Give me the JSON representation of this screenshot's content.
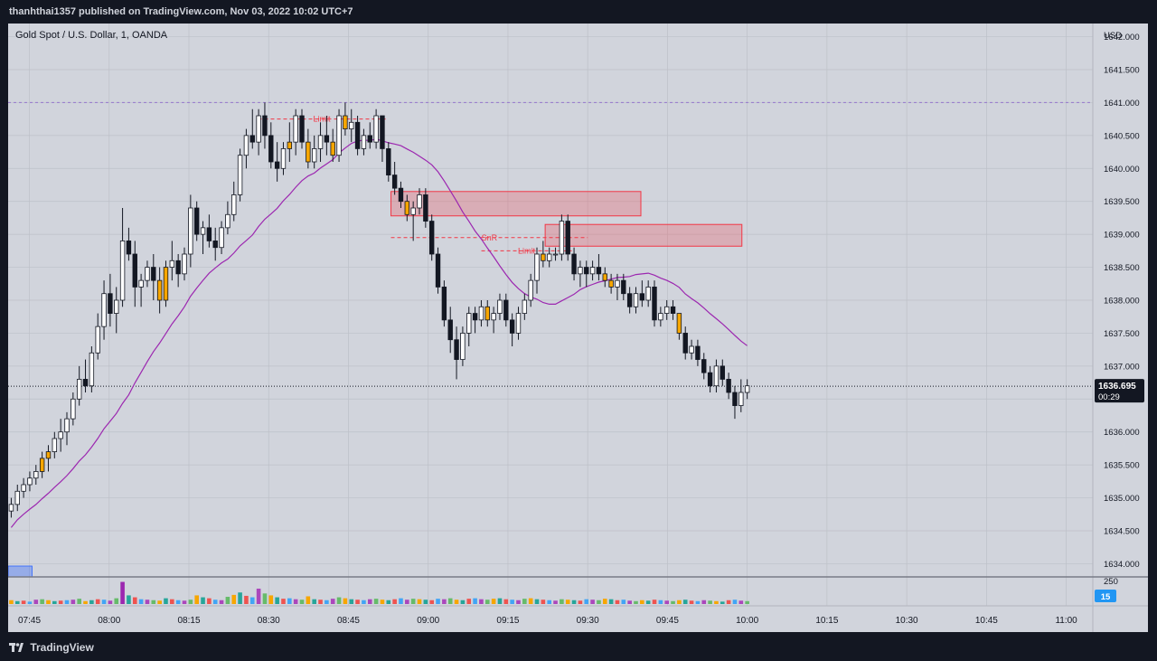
{
  "header": {
    "publish_line": "thanhthai1357 published on TradingView.com, Nov 03, 2022 10:02 UTC+7"
  },
  "footer": {
    "brand": "TradingView"
  },
  "chart_data": {
    "type": "candlestick",
    "symbol_title": "Gold Spot / U.S. Dollar, 1, OANDA",
    "currency": "USD",
    "y_ticks": [
      "1642.000",
      "1641.500",
      "1641.000",
      "1640.500",
      "1640.000",
      "1639.500",
      "1639.000",
      "1638.500",
      "1638.000",
      "1637.500",
      "1637.000",
      "1636.500",
      "1636.000",
      "1635.500",
      "1635.000",
      "1634.500",
      "1634.000"
    ],
    "ylim": [
      1633.8,
      1642.2
    ],
    "x_ticks": [
      "07:45",
      "08:00",
      "08:15",
      "08:30",
      "08:45",
      "09:00",
      "09:15",
      "09:30",
      "09:45",
      "10:00",
      "10:15",
      "10:30",
      "10:45",
      "11:00"
    ],
    "time_range": [
      "07:41",
      "11:05"
    ],
    "last_price": {
      "value": 1636.695,
      "label": "1636.695",
      "countdown": "00:29"
    },
    "volume_axis_label": "250",
    "volume_badge": "15",
    "horizontal_line": 1641.0,
    "annotations": [
      {
        "label": "Limit",
        "price": 1640.75,
        "from": "08:28",
        "to": "08:52"
      },
      {
        "label": "SnR",
        "price": 1638.95,
        "from": "08:53",
        "to": "09:30"
      },
      {
        "label": "Limit",
        "price": 1638.75,
        "from": "09:10",
        "to": "09:27"
      }
    ],
    "zones": [
      {
        "from": "08:53",
        "to": "09:40",
        "top": 1639.65,
        "bottom": 1639.28
      },
      {
        "from": "09:22",
        "to": "09:59",
        "top": 1639.15,
        "bottom": 1638.82
      }
    ],
    "volume_max": 250,
    "candles": [
      [
        1634.8,
        1635.0,
        1634.7,
        1634.9
      ],
      [
        1634.9,
        1635.2,
        1634.8,
        1635.1
      ],
      [
        1635.1,
        1635.3,
        1635.0,
        1635.2
      ],
      [
        1635.2,
        1635.4,
        1635.1,
        1635.3
      ],
      [
        1635.3,
        1635.5,
        1635.2,
        1635.4
      ],
      [
        1635.4,
        1635.7,
        1635.3,
        1635.6
      ],
      [
        1635.6,
        1635.8,
        1635.4,
        1635.7
      ],
      [
        1635.7,
        1636.0,
        1635.6,
        1635.9
      ],
      [
        1635.9,
        1636.2,
        1635.7,
        1636.0
      ],
      [
        1636.0,
        1636.3,
        1635.8,
        1636.2
      ],
      [
        1636.2,
        1636.6,
        1636.1,
        1636.5
      ],
      [
        1636.5,
        1637.0,
        1636.4,
        1636.8
      ],
      [
        1636.8,
        1637.1,
        1636.6,
        1636.7
      ],
      [
        1636.7,
        1637.3,
        1636.6,
        1637.2
      ],
      [
        1637.2,
        1637.8,
        1637.1,
        1637.6
      ],
      [
        1637.6,
        1638.3,
        1637.4,
        1638.1
      ],
      [
        1638.1,
        1638.4,
        1637.6,
        1637.8
      ],
      [
        1637.8,
        1638.2,
        1637.5,
        1638.0
      ],
      [
        1638.0,
        1639.4,
        1637.9,
        1638.9
      ],
      [
        1638.9,
        1639.1,
        1638.6,
        1638.7
      ],
      [
        1638.7,
        1638.9,
        1637.9,
        1638.2
      ],
      [
        1638.2,
        1638.4,
        1637.9,
        1638.3
      ],
      [
        1638.3,
        1638.6,
        1638.2,
        1638.5
      ],
      [
        1638.5,
        1638.7,
        1638.0,
        1638.3
      ],
      [
        1638.3,
        1638.5,
        1637.8,
        1638.0
      ],
      [
        1638.0,
        1638.6,
        1637.9,
        1638.5
      ],
      [
        1638.5,
        1638.9,
        1638.3,
        1638.6
      ],
      [
        1638.6,
        1638.7,
        1638.2,
        1638.4
      ],
      [
        1638.4,
        1638.8,
        1638.3,
        1638.7
      ],
      [
        1638.7,
        1639.6,
        1638.5,
        1639.4
      ],
      [
        1639.4,
        1639.5,
        1638.9,
        1639.0
      ],
      [
        1639.0,
        1639.2,
        1638.7,
        1639.1
      ],
      [
        1639.1,
        1639.3,
        1638.8,
        1638.9
      ],
      [
        1638.9,
        1639.1,
        1638.6,
        1638.8
      ],
      [
        1638.8,
        1639.2,
        1638.7,
        1639.1
      ],
      [
        1639.1,
        1639.5,
        1639.0,
        1639.3
      ],
      [
        1639.3,
        1639.8,
        1639.2,
        1639.6
      ],
      [
        1639.6,
        1640.3,
        1639.5,
        1640.2
      ],
      [
        1640.2,
        1640.6,
        1640.0,
        1640.5
      ],
      [
        1640.5,
        1640.9,
        1640.3,
        1640.4
      ],
      [
        1640.4,
        1640.9,
        1640.2,
        1640.8
      ],
      [
        1640.8,
        1641.0,
        1640.3,
        1640.5
      ],
      [
        1640.5,
        1640.7,
        1640.0,
        1640.1
      ],
      [
        1640.1,
        1640.4,
        1639.8,
        1640.0
      ],
      [
        1640.0,
        1640.4,
        1639.9,
        1640.3
      ],
      [
        1640.3,
        1640.7,
        1640.1,
        1640.4
      ],
      [
        1640.4,
        1640.9,
        1640.2,
        1640.8
      ],
      [
        1640.8,
        1640.9,
        1640.3,
        1640.4
      ],
      [
        1640.4,
        1640.6,
        1640.0,
        1640.1
      ],
      [
        1640.1,
        1640.5,
        1640.0,
        1640.3
      ],
      [
        1640.3,
        1640.7,
        1640.1,
        1640.5
      ],
      [
        1640.5,
        1640.8,
        1640.2,
        1640.4
      ],
      [
        1640.4,
        1640.6,
        1640.1,
        1640.2
      ],
      [
        1640.2,
        1640.9,
        1640.1,
        1640.8
      ],
      [
        1640.8,
        1641.0,
        1640.5,
        1640.6
      ],
      [
        1640.6,
        1640.9,
        1640.4,
        1640.7
      ],
      [
        1640.7,
        1640.8,
        1640.2,
        1640.3
      ],
      [
        1640.3,
        1640.6,
        1640.2,
        1640.5
      ],
      [
        1640.5,
        1640.7,
        1640.3,
        1640.4
      ],
      [
        1640.4,
        1640.9,
        1640.3,
        1640.8
      ],
      [
        1640.8,
        1640.8,
        1640.1,
        1640.3
      ],
      [
        1640.3,
        1640.4,
        1639.8,
        1639.9
      ],
      [
        1639.9,
        1640.1,
        1639.6,
        1639.7
      ],
      [
        1639.7,
        1639.8,
        1639.4,
        1639.5
      ],
      [
        1639.5,
        1639.6,
        1639.2,
        1639.3
      ],
      [
        1639.3,
        1639.5,
        1638.9,
        1639.4
      ],
      [
        1639.4,
        1639.7,
        1639.3,
        1639.6
      ],
      [
        1639.6,
        1639.7,
        1639.1,
        1639.2
      ],
      [
        1639.2,
        1639.3,
        1638.6,
        1638.7
      ],
      [
        1638.7,
        1638.8,
        1638.1,
        1638.2
      ],
      [
        1638.2,
        1638.3,
        1637.6,
        1637.7
      ],
      [
        1637.7,
        1637.9,
        1637.2,
        1637.4
      ],
      [
        1637.4,
        1637.6,
        1636.8,
        1637.1
      ],
      [
        1637.1,
        1637.6,
        1637.0,
        1637.5
      ],
      [
        1637.5,
        1637.9,
        1637.3,
        1637.8
      ],
      [
        1637.8,
        1637.9,
        1637.5,
        1637.7
      ],
      [
        1637.7,
        1638.0,
        1637.6,
        1637.9
      ],
      [
        1637.9,
        1638.0,
        1637.6,
        1637.7
      ],
      [
        1637.7,
        1637.9,
        1637.5,
        1637.8
      ],
      [
        1637.8,
        1638.1,
        1637.7,
        1638.0
      ],
      [
        1638.0,
        1638.1,
        1637.6,
        1637.7
      ],
      [
        1637.7,
        1637.8,
        1637.3,
        1637.5
      ],
      [
        1637.5,
        1637.9,
        1637.4,
        1637.8
      ],
      [
        1637.8,
        1638.1,
        1637.7,
        1638.0
      ],
      [
        1638.0,
        1638.4,
        1637.9,
        1638.3
      ],
      [
        1638.3,
        1638.8,
        1638.1,
        1638.7
      ],
      [
        1638.7,
        1638.9,
        1638.5,
        1638.6
      ],
      [
        1638.6,
        1638.8,
        1638.5,
        1638.7
      ],
      [
        1638.7,
        1638.8,
        1638.6,
        1638.7
      ],
      [
        1638.7,
        1639.3,
        1638.6,
        1639.2
      ],
      [
        1639.2,
        1639.3,
        1638.6,
        1638.7
      ],
      [
        1638.7,
        1638.8,
        1638.3,
        1638.4
      ],
      [
        1638.4,
        1638.6,
        1638.2,
        1638.5
      ],
      [
        1638.5,
        1638.6,
        1638.2,
        1638.4
      ],
      [
        1638.4,
        1638.6,
        1638.3,
        1638.5
      ],
      [
        1638.5,
        1638.7,
        1638.3,
        1638.4
      ],
      [
        1638.4,
        1638.5,
        1638.2,
        1638.3
      ],
      [
        1638.3,
        1638.4,
        1638.1,
        1638.2
      ],
      [
        1638.2,
        1638.4,
        1638.0,
        1638.3
      ],
      [
        1638.3,
        1638.4,
        1638.0,
        1638.1
      ],
      [
        1638.1,
        1638.2,
        1637.8,
        1637.9
      ],
      [
        1637.9,
        1638.2,
        1637.8,
        1638.1
      ],
      [
        1638.1,
        1638.3,
        1637.9,
        1638.0
      ],
      [
        1638.0,
        1638.3,
        1637.9,
        1638.2
      ],
      [
        1638.2,
        1638.3,
        1637.6,
        1637.7
      ],
      [
        1637.7,
        1637.9,
        1637.6,
        1637.8
      ],
      [
        1637.8,
        1638.0,
        1637.7,
        1637.9
      ],
      [
        1637.9,
        1638.0,
        1637.7,
        1637.8
      ],
      [
        1637.8,
        1637.8,
        1637.4,
        1637.5
      ],
      [
        1637.5,
        1637.6,
        1637.1,
        1637.2
      ],
      [
        1637.2,
        1637.4,
        1637.1,
        1637.3
      ],
      [
        1637.3,
        1637.4,
        1637.0,
        1637.1
      ],
      [
        1637.1,
        1637.2,
        1636.8,
        1636.9
      ],
      [
        1636.9,
        1637.0,
        1636.6,
        1636.7
      ],
      [
        1636.7,
        1637.1,
        1636.6,
        1637.0
      ],
      [
        1637.0,
        1637.1,
        1636.7,
        1636.8
      ],
      [
        1636.8,
        1636.9,
        1636.5,
        1636.6
      ],
      [
        1636.6,
        1636.7,
        1636.2,
        1636.4
      ],
      [
        1636.4,
        1636.8,
        1636.3,
        1636.6
      ],
      [
        1636.6,
        1636.8,
        1636.5,
        1636.7
      ]
    ],
    "highlighted_candles": [
      5,
      6,
      24,
      25,
      45,
      48,
      52,
      54,
      64,
      77,
      86,
      96,
      97,
      108
    ],
    "sma_color": "#9c27b0",
    "volumes": [
      40,
      30,
      35,
      25,
      45,
      50,
      40,
      30,
      35,
      40,
      45,
      55,
      30,
      40,
      50,
      45,
      35,
      60,
      230,
      90,
      70,
      50,
      45,
      40,
      35,
      60,
      50,
      40,
      35,
      45,
      90,
      70,
      60,
      45,
      40,
      75,
      95,
      120,
      85,
      70,
      160,
      110,
      90,
      70,
      55,
      60,
      50,
      45,
      80,
      50,
      45,
      40,
      55,
      70,
      60,
      50,
      45,
      40,
      50,
      55,
      45,
      40,
      50,
      60,
      45,
      55,
      50,
      45,
      40,
      55,
      50,
      60,
      45,
      40,
      55,
      60,
      50,
      45,
      55,
      60,
      50,
      45,
      40,
      55,
      60,
      50,
      45,
      40,
      35,
      50,
      45,
      40,
      35,
      50,
      45,
      40,
      55,
      50,
      40,
      45,
      35,
      30,
      40,
      35,
      45,
      40,
      35,
      30,
      40,
      45,
      35,
      30,
      40,
      35,
      30,
      25,
      40,
      45,
      35,
      30
    ]
  }
}
